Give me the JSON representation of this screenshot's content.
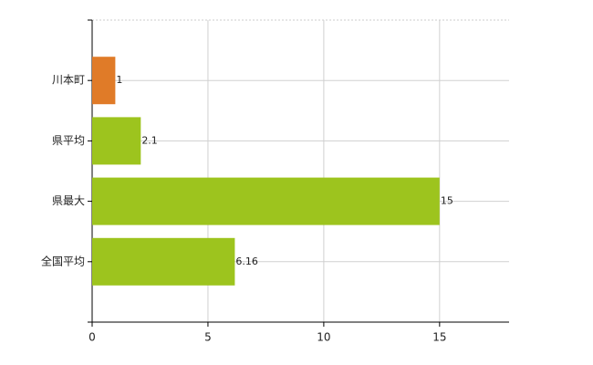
{
  "chart_data": {
    "type": "bar",
    "orientation": "horizontal",
    "categories": [
      "川本町",
      "県平均",
      "県最大",
      "全国平均"
    ],
    "values": [
      1,
      2.1,
      15,
      6.16
    ],
    "colors": [
      "#e07b28",
      "#9dc41e",
      "#9dc41e",
      "#9dc41e"
    ],
    "xlim": [
      0,
      18
    ],
    "xticks": [
      0,
      5,
      10,
      15
    ],
    "grid": true
  }
}
